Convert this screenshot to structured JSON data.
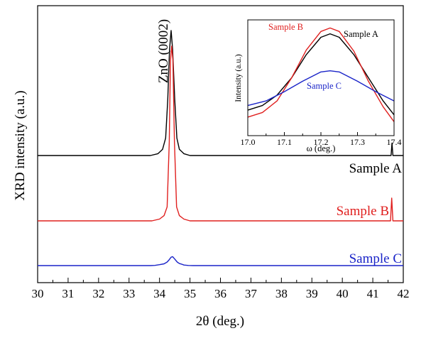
{
  "chart_data": [
    {
      "type": "line",
      "title": "",
      "xlabel": "2θ (deg.)",
      "ylabel": "XRD intensity (a.u.)",
      "xlim": [
        30,
        42
      ],
      "x_ticks": [
        "30",
        "31",
        "32",
        "33",
        "34",
        "35",
        "36",
        "37",
        "38",
        "39",
        "40",
        "41",
        "42"
      ],
      "y_ticks_labeled": false,
      "grid": false,
      "annotation": "ZnO (0002)",
      "series": [
        {
          "name": "Sample A",
          "color": "#000000",
          "offset": 0.78,
          "points": [
            [
              30,
              0
            ],
            [
              33.7,
              0.0
            ],
            [
              33.95,
              0.015
            ],
            [
              34.1,
              0.05
            ],
            [
              34.2,
              0.14
            ],
            [
              34.27,
              0.45
            ],
            [
              34.33,
              0.85
            ],
            [
              34.38,
              1.0
            ],
            [
              34.43,
              0.85
            ],
            [
              34.5,
              0.45
            ],
            [
              34.57,
              0.14
            ],
            [
              34.65,
              0.05
            ],
            [
              34.8,
              0.015
            ],
            [
              35.0,
              0.0
            ],
            [
              41.6,
              0.0
            ],
            [
              41.63,
              0.1
            ],
            [
              41.66,
              0.0
            ],
            [
              42,
              0
            ]
          ]
        },
        {
          "name": "Sample B",
          "color": "#e0201f",
          "offset": 0.4,
          "points": [
            [
              30,
              0
            ],
            [
              33.75,
              0.0
            ],
            [
              34.0,
              0.01
            ],
            [
              34.15,
              0.03
            ],
            [
              34.25,
              0.08
            ],
            [
              34.32,
              0.45
            ],
            [
              34.36,
              0.92
            ],
            [
              34.4,
              1.0
            ],
            [
              34.44,
              0.92
            ],
            [
              34.49,
              0.45
            ],
            [
              34.56,
              0.08
            ],
            [
              34.65,
              0.03
            ],
            [
              34.8,
              0.01
            ],
            [
              35.0,
              0.0
            ],
            [
              41.58,
              0.0
            ],
            [
              41.62,
              0.13
            ],
            [
              41.66,
              0.0
            ],
            [
              42,
              0
            ]
          ]
        },
        {
          "name": "Sample C",
          "color": "#1a24c8",
          "offset": 0.0,
          "points": [
            [
              30,
              0
            ],
            [
              33.7,
              0.0
            ],
            [
              33.85,
              0.006
            ],
            [
              34.0,
              0.03
            ],
            [
              34.15,
              0.06
            ],
            [
              34.25,
              0.12
            ],
            [
              34.32,
              0.2
            ],
            [
              34.38,
              0.28
            ],
            [
              34.43,
              0.3
            ],
            [
              34.5,
              0.22
            ],
            [
              34.58,
              0.12
            ],
            [
              34.65,
              0.07
            ],
            [
              34.72,
              0.05
            ],
            [
              34.8,
              0.02
            ],
            [
              34.95,
              0.005
            ],
            [
              35.1,
              0.0
            ],
            [
              42,
              0
            ]
          ]
        }
      ]
    },
    {
      "type": "line",
      "title": "",
      "xlabel": "ω (deg.)",
      "ylabel": "Intensity (a.u.)",
      "xlim": [
        17.0,
        17.4
      ],
      "x_ticks": [
        "17.0",
        "17.1",
        "17.2",
        "17.3",
        "17.4"
      ],
      "y_ticks_labeled": false,
      "grid": false,
      "series": [
        {
          "name": "Sample A",
          "color": "#000000",
          "points": [
            [
              17.0,
              0.22
            ],
            [
              17.04,
              0.26
            ],
            [
              17.08,
              0.35
            ],
            [
              17.12,
              0.5
            ],
            [
              17.16,
              0.7
            ],
            [
              17.2,
              0.85
            ],
            [
              17.225,
              0.88
            ],
            [
              17.25,
              0.85
            ],
            [
              17.29,
              0.7
            ],
            [
              17.33,
              0.5
            ],
            [
              17.37,
              0.3
            ],
            [
              17.4,
              0.18
            ]
          ]
        },
        {
          "name": "Sample B",
          "color": "#e0201f",
          "points": [
            [
              17.0,
              0.16
            ],
            [
              17.04,
              0.2
            ],
            [
              17.08,
              0.3
            ],
            [
              17.12,
              0.5
            ],
            [
              17.16,
              0.74
            ],
            [
              17.2,
              0.9
            ],
            [
              17.225,
              0.93
            ],
            [
              17.25,
              0.9
            ],
            [
              17.29,
              0.73
            ],
            [
              17.33,
              0.47
            ],
            [
              17.37,
              0.25
            ],
            [
              17.4,
              0.12
            ]
          ]
        },
        {
          "name": "Sample C",
          "color": "#1a24c8",
          "points": [
            [
              17.0,
              0.26
            ],
            [
              17.05,
              0.3
            ],
            [
              17.1,
              0.38
            ],
            [
              17.15,
              0.47
            ],
            [
              17.2,
              0.55
            ],
            [
              17.225,
              0.56
            ],
            [
              17.25,
              0.55
            ],
            [
              17.3,
              0.47
            ],
            [
              17.35,
              0.38
            ],
            [
              17.4,
              0.3
            ]
          ]
        }
      ]
    }
  ]
}
